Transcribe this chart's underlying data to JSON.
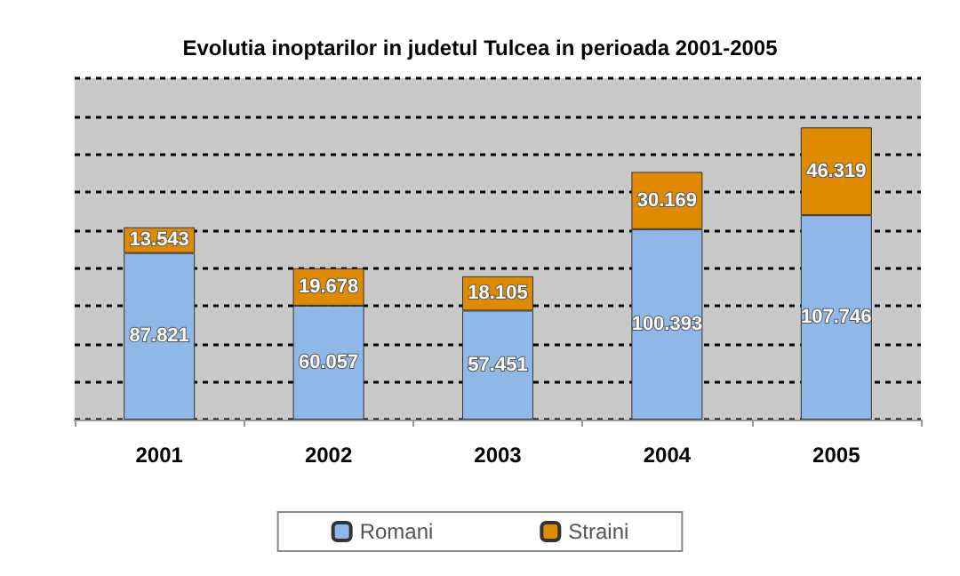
{
  "chart_data": {
    "type": "bar",
    "title": "Evolutia inoptarilor in judetul Tulcea in perioada 2001-2005",
    "categories": [
      "2001",
      "2002",
      "2003",
      "2004",
      "2005"
    ],
    "stacked": true,
    "series": [
      {
        "name": "Romani",
        "color": "#8fb8e8",
        "values": [
          87821,
          60057,
          57451,
          100393,
          107746
        ],
        "value_labels": [
          "87.821",
          "60.057",
          "57.451",
          "100.393",
          "107.746"
        ]
      },
      {
        "name": "Straini",
        "color": "#e08a00",
        "values": [
          13543,
          19678,
          18105,
          30169,
          46319
        ],
        "value_labels": [
          "13.543",
          "19.678",
          "18.105",
          "30.169",
          "46.319"
        ]
      }
    ],
    "ylim": [
      0,
      180000
    ],
    "yticks": [
      {
        "value": 0,
        "label": null
      },
      {
        "value": 20000,
        "label": null
      },
      {
        "value": 40000,
        "label": null
      },
      {
        "value": 60000,
        "label": null
      },
      {
        "value": 80000,
        "label": null
      },
      {
        "value": 100000,
        "label": null
      },
      {
        "value": 120000,
        "label": null
      },
      {
        "value": 140000,
        "label": null
      },
      {
        "value": 160000,
        "label": null
      },
      {
        "value": 180000,
        "label": null
      }
    ],
    "tick_labels": "x",
    "grid": "y",
    "legend": "bottom"
  }
}
